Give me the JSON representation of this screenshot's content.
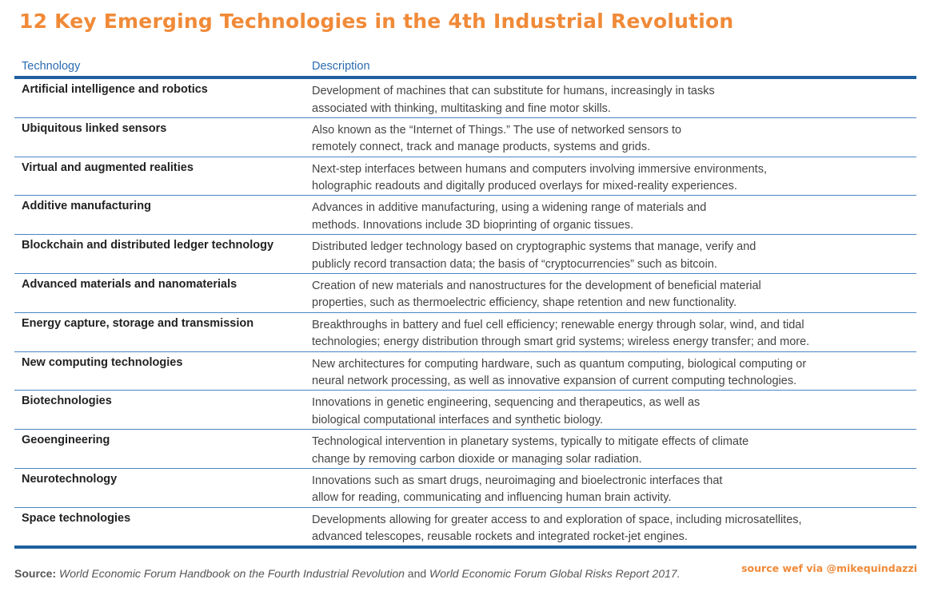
{
  "title": "12 Key Emerging Technologies in the 4th Industrial Revolution",
  "table": {
    "headers": {
      "technology": "Technology",
      "description": "Description"
    },
    "rows": [
      {
        "tech": "Artificial intelligence and robotics",
        "desc": [
          "Development of machines that can substitute for humans, increasingly in tasks",
          "associated with thinking, multitasking and fine motor skills."
        ]
      },
      {
        "tech": "Ubiquitous linked sensors",
        "desc": [
          "Also known as the “Internet of Things.” The use of networked sensors to",
          "remotely connect, track and manage products, systems and grids."
        ]
      },
      {
        "tech": "Virtual and augmented realities",
        "desc": [
          "Next-step interfaces between humans and computers involving immersive environments,",
          "holographic readouts and digitally produced overlays for mixed-reality experiences."
        ]
      },
      {
        "tech": "Additive manufacturing",
        "desc": [
          "Advances in additive manufacturing, using a widening range of materials and",
          "methods. Innovations include 3D bioprinting of organic tissues."
        ]
      },
      {
        "tech": "Blockchain and distributed ledger technology",
        "desc": [
          "Distributed ledger technology based on cryptographic systems that manage, verify and",
          "publicly record transaction data; the basis of “cryptocurrencies” such as bitcoin."
        ]
      },
      {
        "tech": "Advanced materials and nanomaterials",
        "desc": [
          "Creation of new materials and nanostructures for the development of beneficial material",
          "properties, such as thermoelectric efficiency, shape retention and new functionality."
        ]
      },
      {
        "tech": "Energy capture, storage and transmission",
        "desc": [
          "Breakthroughs in battery and fuel cell efficiency; renewable energy through solar, wind, and tidal",
          "technologies; energy distribution through smart grid systems; wireless energy transfer; and more."
        ]
      },
      {
        "tech": "New computing technologies",
        "desc": [
          "New architectures for computing hardware, such as quantum computing, biological computing or",
          "neural network processing, as well as innovative expansion of current computing technologies."
        ]
      },
      {
        "tech": "Biotechnologies",
        "desc": [
          "Innovations in genetic engineering, sequencing and therapeutics, as well as",
          "biological computational interfaces and synthetic biology."
        ]
      },
      {
        "tech": "Geoengineering",
        "desc": [
          "Technological intervention in planetary systems, typically to mitigate effects of climate",
          "change by removing carbon dioxide or managing solar radiation."
        ]
      },
      {
        "tech": "Neurotechnology",
        "desc": [
          "Innovations such as smart drugs, neuroimaging and bioelectronic interfaces that",
          "allow for reading, communicating and influencing human brain activity."
        ]
      },
      {
        "tech": "Space technologies",
        "desc": [
          "Developments allowing for greater access to and exploration of space, including microsatellites,",
          "advanced telescopes, reusable rockets and integrated rocket-jet engines."
        ]
      }
    ]
  },
  "source": {
    "label": "Source:",
    "ref1": "World Economic Forum Handbook on the Fourth Industrial Revolution",
    "joiner": " and ",
    "ref2": "World Economic Forum Global Risks Report 2017."
  },
  "credit": "source wef via @mikequindazzi",
  "colors": {
    "title": "#f08a38",
    "header": "#2b6cb0",
    "rule": "#1f5fa0"
  }
}
